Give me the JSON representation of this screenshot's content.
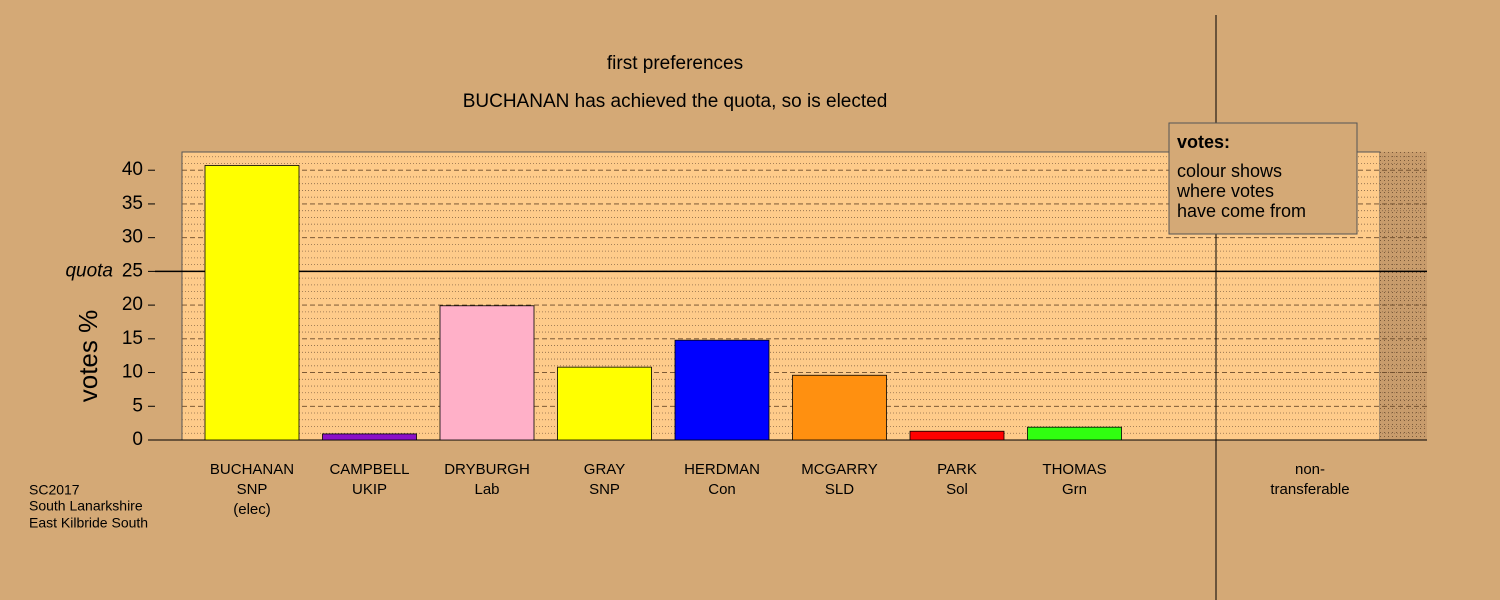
{
  "chart_data": {
    "type": "bar",
    "title": "first preferences",
    "subtitle": "BUCHANAN has achieved the quota, so is elected",
    "y_label": "votes %",
    "categories": [
      [
        "BUCHANAN",
        "SNP",
        "(elec)"
      ],
      [
        "CAMPBELL",
        "UKIP"
      ],
      [
        "DRYBURGH",
        "Lab"
      ],
      [
        "GRAY",
        "SNP"
      ],
      [
        "HERDMAN",
        "Con"
      ],
      [
        "MCGARRY",
        "SLD"
      ],
      [
        "PARK",
        "Sol"
      ],
      [
        "THOMAS",
        "Grn"
      ],
      [
        "non-",
        "transferable"
      ]
    ],
    "values": [
      40.7,
      0.9,
      19.9,
      10.8,
      14.8,
      9.6,
      1.3,
      1.9,
      0
    ],
    "colors": [
      "#ffff00",
      "#8b10c8",
      "#ffb0c8",
      "#ffff00",
      "#0000ff",
      "#ff9010",
      "#ff0000",
      "#30ff10",
      "#888888"
    ],
    "ylim": [
      0,
      42.7
    ],
    "yticks": [
      0,
      5,
      10,
      15,
      20,
      25,
      30,
      35,
      40
    ],
    "grid": true,
    "quota": {
      "value": 25,
      "label": "quota"
    },
    "legend": {
      "title": "votes:",
      "lines": [
        "colour shows",
        "where votes",
        "have come from"
      ]
    },
    "notes": [
      "SC2017",
      "South Lanarkshire",
      "East Kilbride South"
    ]
  }
}
